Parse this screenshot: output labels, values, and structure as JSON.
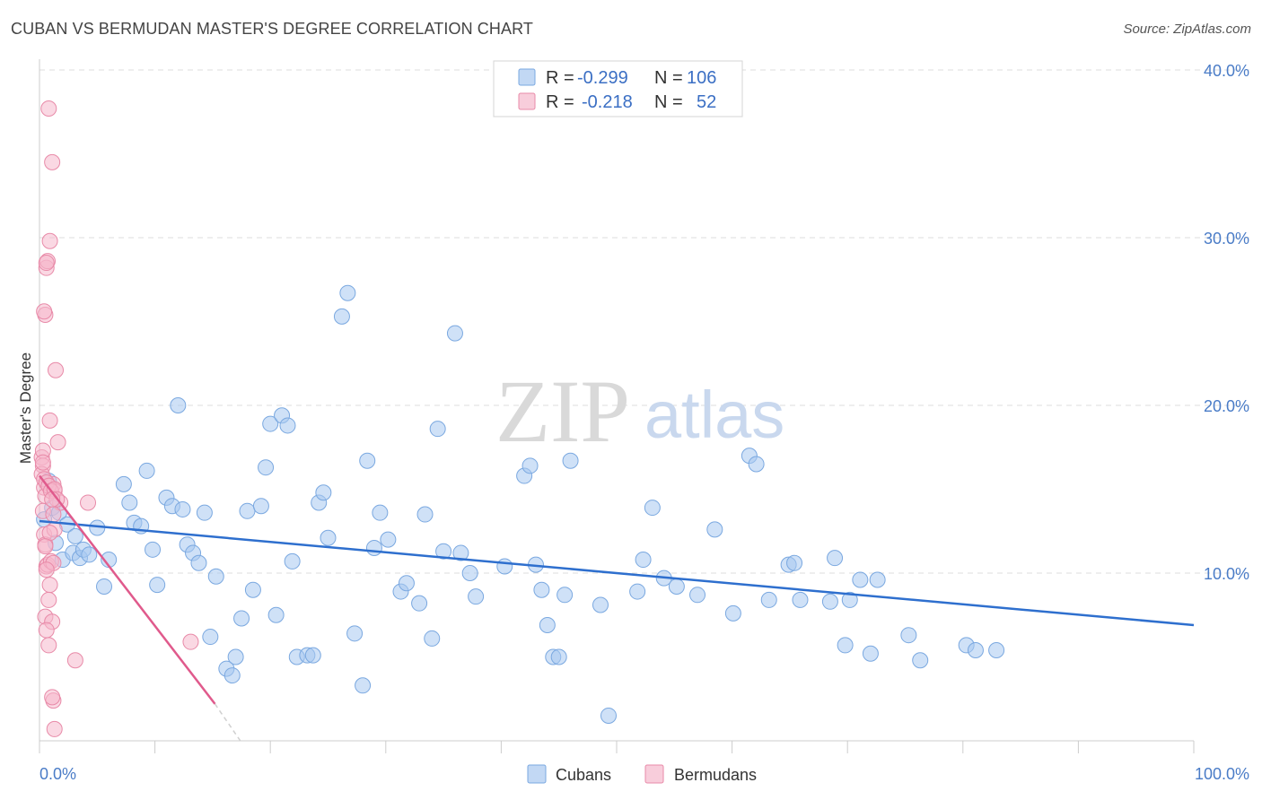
{
  "header": {
    "title": "CUBAN VS BERMUDAN MASTER'S DEGREE CORRELATION CHART",
    "source": "Source: ZipAtlas.com"
  },
  "watermark": {
    "zip": "ZIP",
    "atlas": "atlas"
  },
  "legend_top": {
    "rows": [
      {
        "r_label": "R = ",
        "r_value": "-0.299",
        "n_label": "N = ",
        "n_value": "106",
        "color": "#a8c8f0"
      },
      {
        "r_label": "R = ",
        "r_value": "-0.218",
        "n_label": "N = ",
        "n_value": "52",
        "color": "#f5b8cc"
      }
    ]
  },
  "legend_bottom": {
    "items": [
      {
        "label": "Cubans",
        "color": "#a8c8f0"
      },
      {
        "label": "Bermudans",
        "color": "#f5b8cc"
      }
    ]
  },
  "chart_data": {
    "type": "scatter",
    "title": "CUBAN VS BERMUDAN MASTER'S DEGREE CORRELATION CHART",
    "xlabel": "",
    "ylabel": "Master's Degree",
    "xlim": [
      0,
      100
    ],
    "ylim": [
      0,
      40
    ],
    "x_tick_labels": [
      "0.0%",
      "100.0%"
    ],
    "y_ticks": [
      10,
      20,
      30,
      40
    ],
    "y_tick_labels": [
      "10.0%",
      "20.0%",
      "30.0%",
      "40.0%"
    ],
    "grid": true,
    "series": [
      {
        "name": "Cubans",
        "color": "#a8c8f0",
        "stroke": "#7aa8e0",
        "trend": {
          "x": [
            0,
            100
          ],
          "y": [
            13.1,
            6.9
          ],
          "color": "#2e6fce"
        },
        "points": [
          [
            0.4,
            13.2
          ],
          [
            0.8,
            15.5
          ],
          [
            1.1,
            13.9
          ],
          [
            1.4,
            11.8
          ],
          [
            1.7,
            13.6
          ],
          [
            2.0,
            10.8
          ],
          [
            2.4,
            12.9
          ],
          [
            2.9,
            11.2
          ],
          [
            3.1,
            12.2
          ],
          [
            3.5,
            10.9
          ],
          [
            3.8,
            11.4
          ],
          [
            4.3,
            11.1
          ],
          [
            5.0,
            12.7
          ],
          [
            5.6,
            9.2
          ],
          [
            6.0,
            10.8
          ],
          [
            7.3,
            15.3
          ],
          [
            7.8,
            14.2
          ],
          [
            8.2,
            13.0
          ],
          [
            8.8,
            12.8
          ],
          [
            9.3,
            16.1
          ],
          [
            9.8,
            11.4
          ],
          [
            10.2,
            9.3
          ],
          [
            11.0,
            14.5
          ],
          [
            11.5,
            14.0
          ],
          [
            12.0,
            20.0
          ],
          [
            12.4,
            13.8
          ],
          [
            12.8,
            11.7
          ],
          [
            13.3,
            11.2
          ],
          [
            13.8,
            10.6
          ],
          [
            14.3,
            13.6
          ],
          [
            14.8,
            6.2
          ],
          [
            15.3,
            9.8
          ],
          [
            16.2,
            4.3
          ],
          [
            16.7,
            3.9
          ],
          [
            17.0,
            5.0
          ],
          [
            17.5,
            7.3
          ],
          [
            18.0,
            13.7
          ],
          [
            18.5,
            9.0
          ],
          [
            19.2,
            14.0
          ],
          [
            19.6,
            16.3
          ],
          [
            20.0,
            18.9
          ],
          [
            20.5,
            7.5
          ],
          [
            21.0,
            19.4
          ],
          [
            21.5,
            18.8
          ],
          [
            21.9,
            10.7
          ],
          [
            22.3,
            5.0
          ],
          [
            23.2,
            5.1
          ],
          [
            23.7,
            5.1
          ],
          [
            24.2,
            14.2
          ],
          [
            24.6,
            14.8
          ],
          [
            25.0,
            12.1
          ],
          [
            26.2,
            25.3
          ],
          [
            26.7,
            26.7
          ],
          [
            27.3,
            6.4
          ],
          [
            28.0,
            3.3
          ],
          [
            28.4,
            16.7
          ],
          [
            29.0,
            11.5
          ],
          [
            29.5,
            13.6
          ],
          [
            30.2,
            12.0
          ],
          [
            31.3,
            8.9
          ],
          [
            31.8,
            9.4
          ],
          [
            32.9,
            8.2
          ],
          [
            33.4,
            13.5
          ],
          [
            34.0,
            6.1
          ],
          [
            34.5,
            18.6
          ],
          [
            35.0,
            11.3
          ],
          [
            36.0,
            24.3
          ],
          [
            36.5,
            11.2
          ],
          [
            37.3,
            10.0
          ],
          [
            37.8,
            8.6
          ],
          [
            40.3,
            10.4
          ],
          [
            42.0,
            15.8
          ],
          [
            42.5,
            16.4
          ],
          [
            43.0,
            10.5
          ],
          [
            43.5,
            9.0
          ],
          [
            44.0,
            6.9
          ],
          [
            44.5,
            5.0
          ],
          [
            45.0,
            5.0
          ],
          [
            45.5,
            8.7
          ],
          [
            46.0,
            16.7
          ],
          [
            48.6,
            8.1
          ],
          [
            49.3,
            1.5
          ],
          [
            51.8,
            8.9
          ],
          [
            52.3,
            10.8
          ],
          [
            53.1,
            13.9
          ],
          [
            54.1,
            9.7
          ],
          [
            55.2,
            9.2
          ],
          [
            57.0,
            8.7
          ],
          [
            58.5,
            12.6
          ],
          [
            60.1,
            7.6
          ],
          [
            61.5,
            17.0
          ],
          [
            62.1,
            16.5
          ],
          [
            63.2,
            8.4
          ],
          [
            64.9,
            10.5
          ],
          [
            65.4,
            10.6
          ],
          [
            65.9,
            8.4
          ],
          [
            68.5,
            8.3
          ],
          [
            68.9,
            10.9
          ],
          [
            69.8,
            5.7
          ],
          [
            71.1,
            9.6
          ],
          [
            72.0,
            5.2
          ],
          [
            72.6,
            9.6
          ],
          [
            75.3,
            6.3
          ],
          [
            80.3,
            5.7
          ],
          [
            81.1,
            5.4
          ],
          [
            82.9,
            5.4
          ],
          [
            76.3,
            4.8
          ],
          [
            70.2,
            8.4
          ]
        ]
      },
      {
        "name": "Bermudans",
        "color": "#f5b8cc",
        "stroke": "#e88aa8",
        "trend": {
          "x": [
            0,
            15.2
          ],
          "y": [
            15.8,
            2.2
          ],
          "color": "#e05a8c",
          "dashed_extension_to": [
            17.4,
            0
          ]
        },
        "points": [
          [
            0.2,
            16.9
          ],
          [
            0.3,
            16.4
          ],
          [
            0.4,
            15.1
          ],
          [
            0.5,
            14.6
          ],
          [
            0.3,
            13.7
          ],
          [
            0.4,
            12.3
          ],
          [
            0.5,
            11.7
          ],
          [
            0.6,
            10.4
          ],
          [
            0.3,
            17.3
          ],
          [
            0.5,
            25.4
          ],
          [
            0.6,
            28.2
          ],
          [
            0.7,
            28.6
          ],
          [
            0.8,
            37.7
          ],
          [
            0.9,
            29.8
          ],
          [
            1.1,
            34.5
          ],
          [
            1.2,
            15.3
          ],
          [
            1.3,
            14.9
          ],
          [
            1.4,
            22.1
          ],
          [
            1.6,
            17.8
          ],
          [
            1.8,
            14.2
          ],
          [
            0.2,
            15.9
          ],
          [
            0.4,
            15.6
          ],
          [
            0.6,
            15.4
          ],
          [
            0.8,
            15.2
          ],
          [
            1.0,
            14.9
          ],
          [
            1.2,
            13.5
          ],
          [
            1.3,
            12.6
          ],
          [
            0.9,
            12.4
          ],
          [
            0.5,
            11.6
          ],
          [
            0.7,
            10.5
          ],
          [
            1.0,
            10.7
          ],
          [
            1.2,
            10.6
          ],
          [
            0.6,
            10.2
          ],
          [
            0.9,
            9.3
          ],
          [
            0.8,
            8.4
          ],
          [
            0.5,
            7.4
          ],
          [
            1.1,
            7.1
          ],
          [
            0.6,
            6.6
          ],
          [
            0.8,
            5.7
          ],
          [
            0.9,
            19.1
          ],
          [
            1.3,
            15.0
          ],
          [
            1.5,
            14.4
          ],
          [
            3.1,
            4.8
          ],
          [
            4.2,
            14.2
          ],
          [
            13.1,
            5.9
          ],
          [
            1.2,
            2.4
          ],
          [
            1.3,
            0.7
          ],
          [
            1.1,
            2.6
          ],
          [
            0.4,
            25.6
          ],
          [
            0.6,
            28.5
          ],
          [
            0.3,
            16.6
          ],
          [
            1.1,
            14.4
          ]
        ]
      }
    ]
  }
}
